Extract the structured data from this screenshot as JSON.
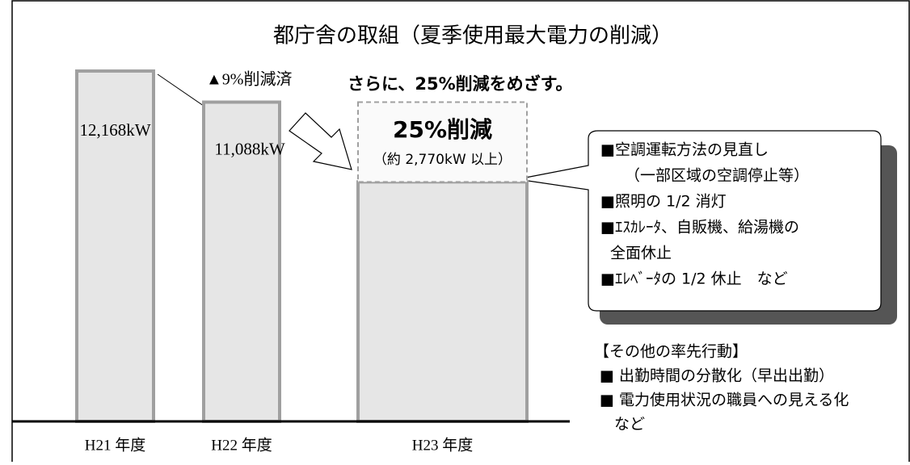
{
  "chart_data": {
    "type": "bar",
    "title": "都庁舎の取組（夏季使用最大電力の削減）",
    "categories": [
      "H21 年度",
      "H22 年度",
      "H23 年度"
    ],
    "values": [
      12168,
      11088,
      8318
    ],
    "value_labels": [
      "12,168kW",
      "11,088kW",
      null
    ],
    "color": "#e6e6e6",
    "reduction": {
      "value": 2770,
      "label": "25%削減",
      "sublabel": "（約 2,770kW 以上）"
    },
    "annotations": {
      "past": "▲9%削減済",
      "goal": "さらに、25%削減をめざす。"
    },
    "measures": [
      "■空調運転方法の見直し",
      "（一部区域の空調停止等）",
      "■照明の 1/2 消灯",
      "■ｴｽｶﾚｰﾀ、自販機、給湯機の",
      "全面休止",
      "■ｴﾚﾍﾞｰﾀの 1/2 休止　など"
    ],
    "other": {
      "title": "【その他の率先行動】",
      "items": [
        "■ 出勤時間の分散化（早出出勤）",
        "■ 電力使用状況の職員への見える化",
        "など"
      ]
    }
  }
}
